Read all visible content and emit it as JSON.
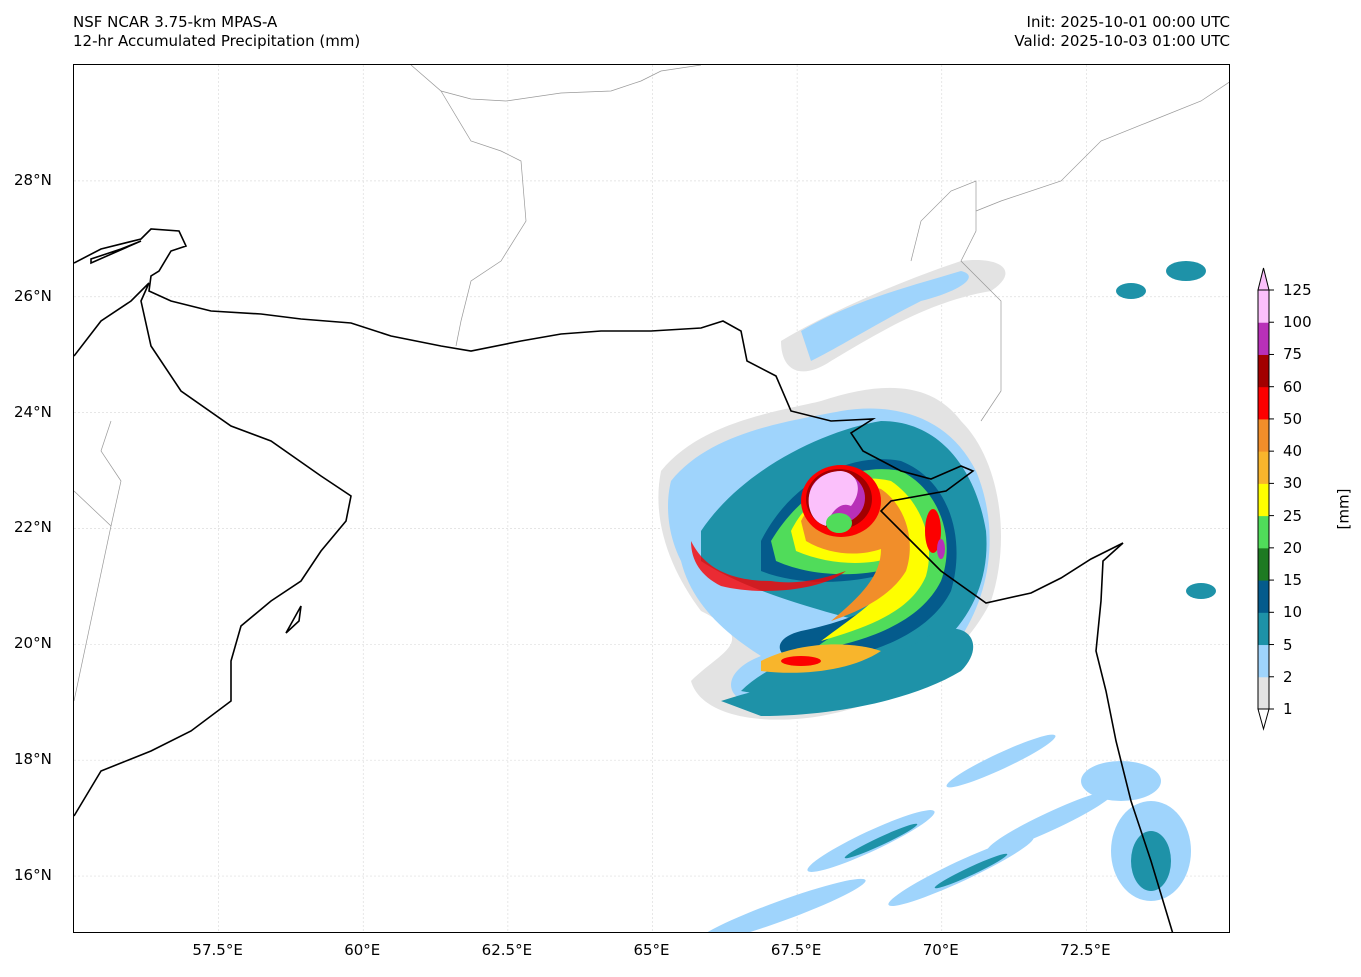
{
  "header": {
    "model": "NSF NCAR 3.75-km MPAS-A",
    "field": "12-hr Accumulated Precipitation (mm)",
    "init": "Init: 2025-10-01 00:00 UTC",
    "valid": "Valid: 2025-10-03 01:00 UTC"
  },
  "map": {
    "lon_range": [
      55,
      75
    ],
    "lat_range": [
      15,
      30
    ],
    "lon_ticks": [
      {
        "v": 57.5,
        "label": "57.5°E"
      },
      {
        "v": 60,
        "label": "60°E"
      },
      {
        "v": 62.5,
        "label": "62.5°E"
      },
      {
        "v": 65,
        "label": "65°E"
      },
      {
        "v": 67.5,
        "label": "67.5°E"
      },
      {
        "v": 70,
        "label": "70°E"
      },
      {
        "v": 72.5,
        "label": "72.5°E"
      }
    ],
    "lat_ticks": [
      {
        "v": 16,
        "label": "16°N"
      },
      {
        "v": 18,
        "label": "18°N"
      },
      {
        "v": 20,
        "label": "20°N"
      },
      {
        "v": 22,
        "label": "22°N"
      },
      {
        "v": 24,
        "label": "24°N"
      },
      {
        "v": 26,
        "label": "26°N"
      },
      {
        "v": 28,
        "label": "28°N"
      }
    ]
  },
  "colorbar": {
    "unit": "[mm]",
    "levels": [
      "1",
      "2",
      "5",
      "10",
      "15",
      "20",
      "25",
      "30",
      "40",
      "50",
      "60",
      "75",
      "100",
      "125"
    ],
    "colors": [
      "#e3e3e3",
      "#9fd4fc",
      "#1e92a8",
      "#045b8c",
      "#1e7a22",
      "#50dc5a",
      "#fefe00",
      "#f8b52c",
      "#f18e2a",
      "#fc0000",
      "#a20000",
      "#b830b8",
      "#fbc0fb"
    ]
  }
}
